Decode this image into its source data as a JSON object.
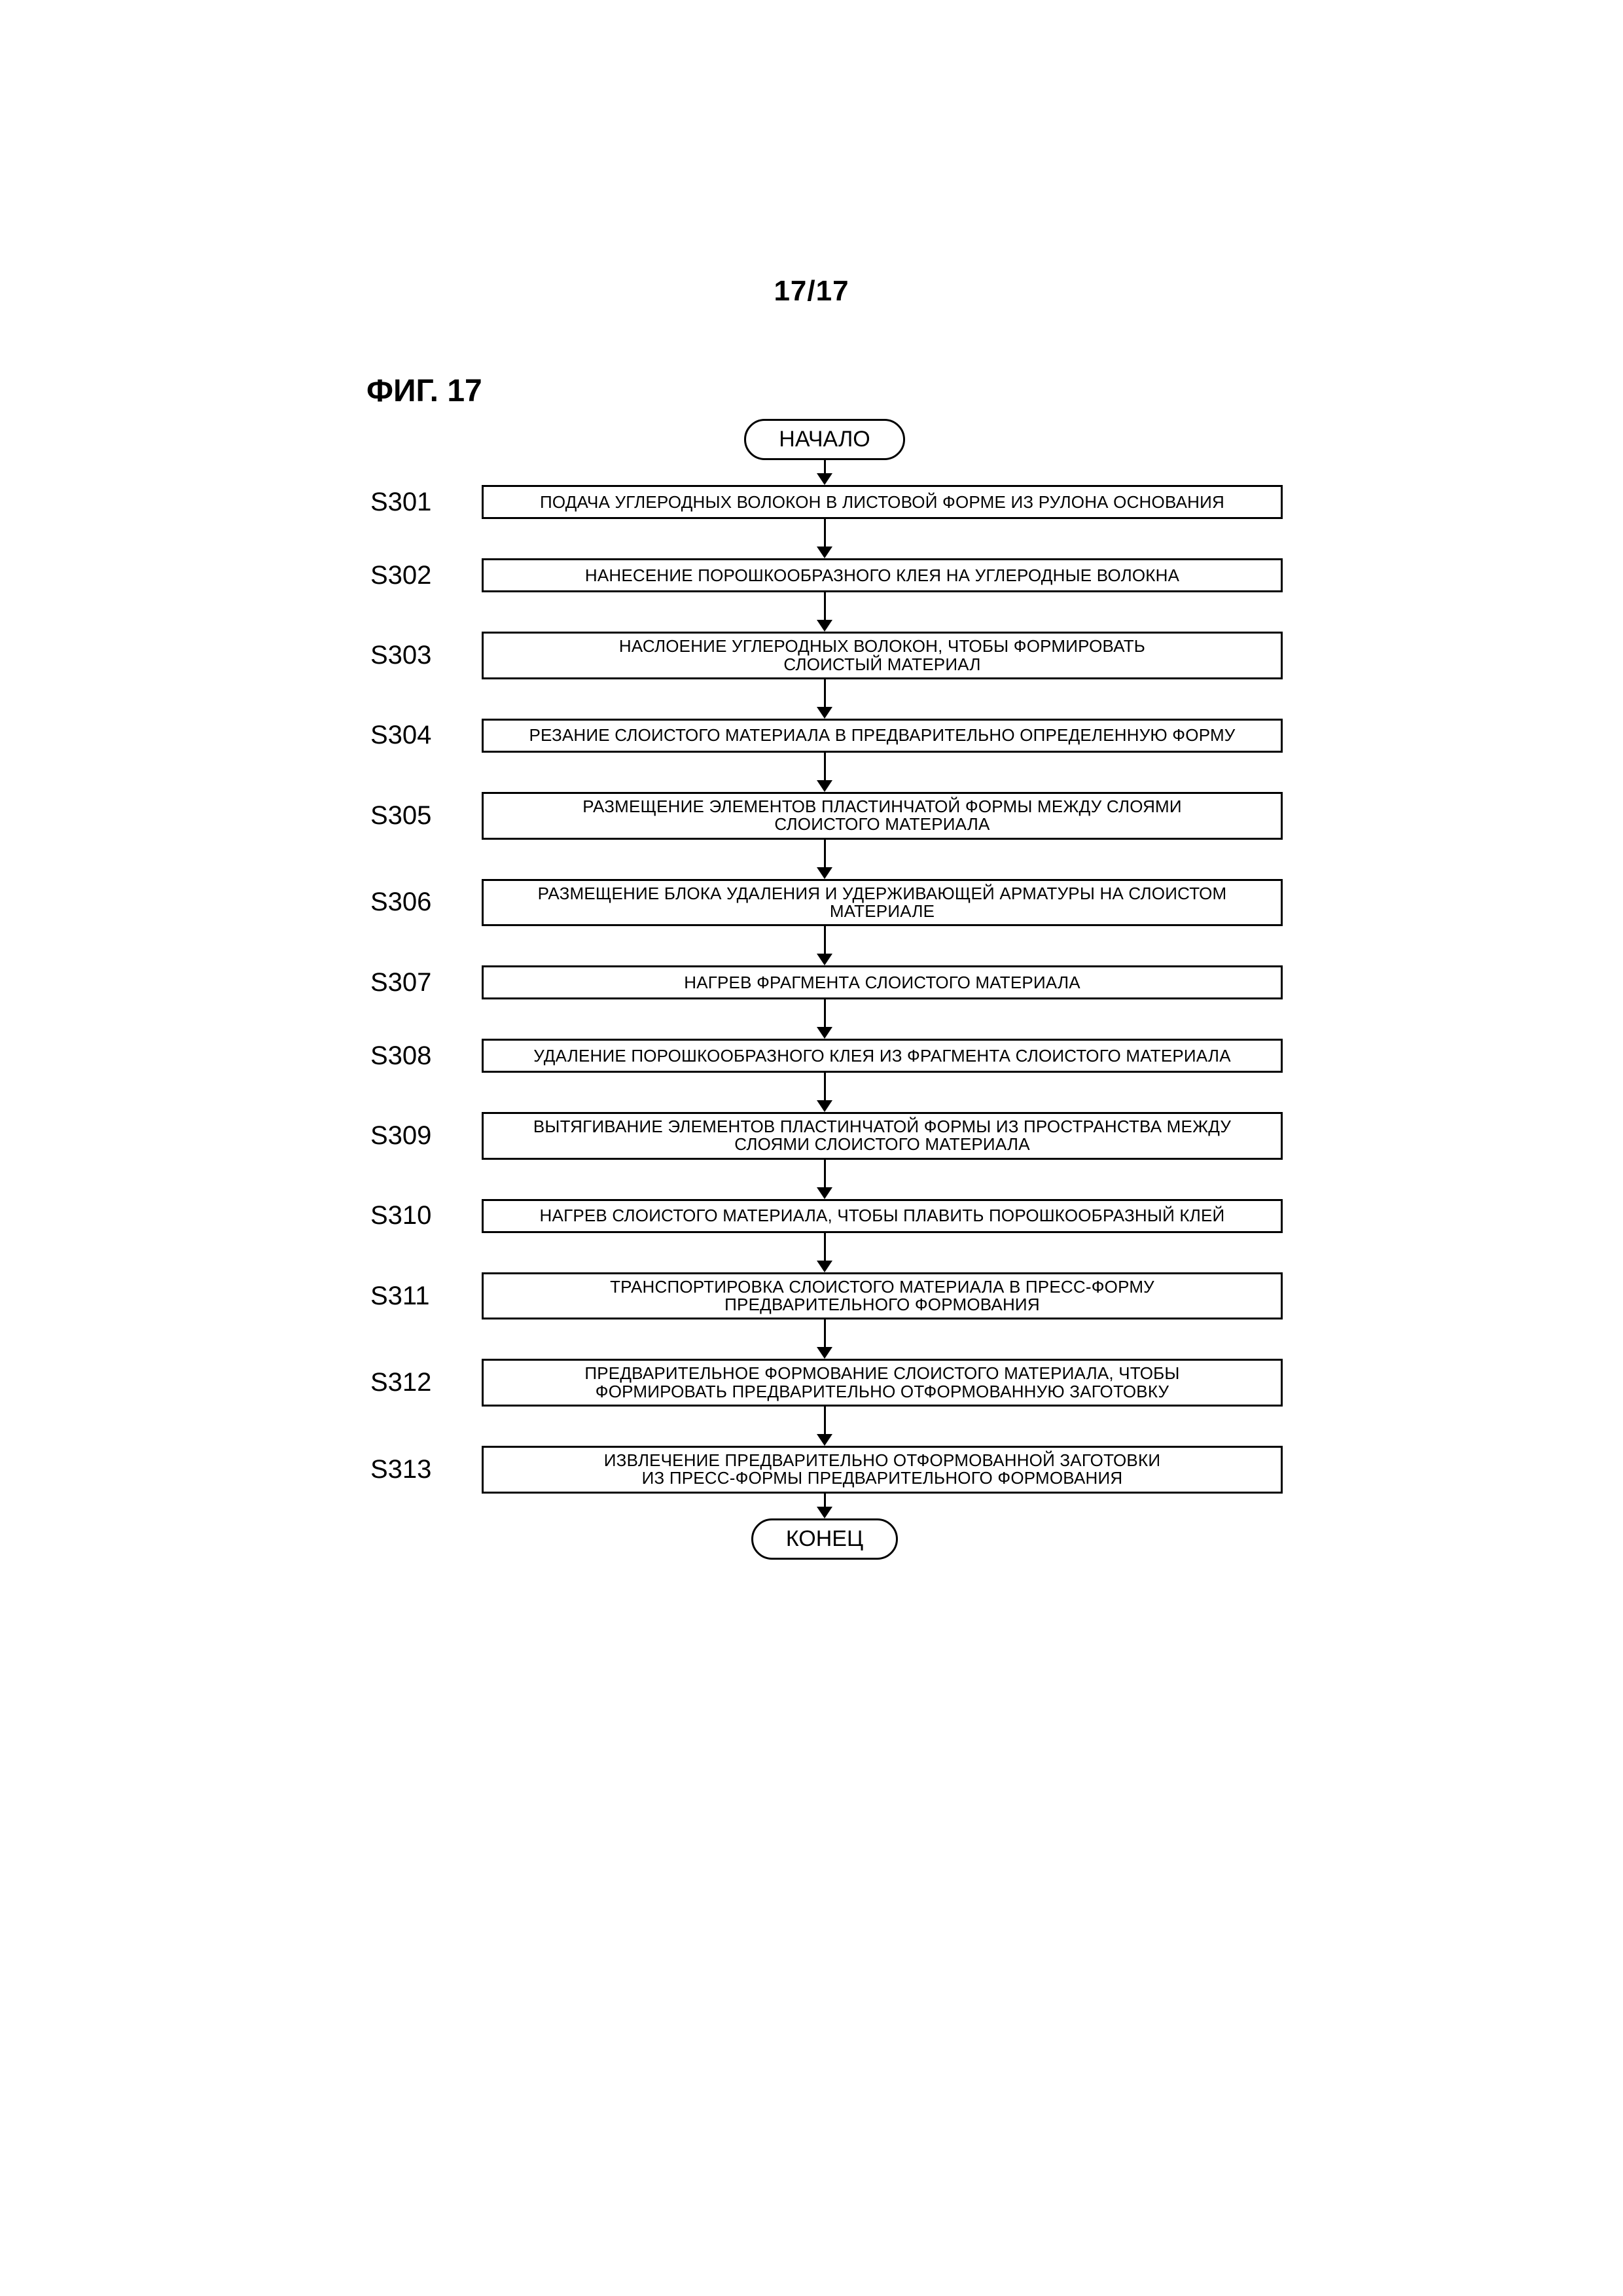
{
  "page_number": "17/17",
  "figure_caption": "ФИГ. 17",
  "flowchart": {
    "type": "flowchart",
    "start_label": "НАЧАЛО",
    "end_label": "КОНЕЦ",
    "box_border_color": "#000000",
    "box_border_width": 3,
    "background_color": "#ffffff",
    "label_fontsize": 40,
    "box_fontsize": 26,
    "terminator_fontsize": 34,
    "steps": [
      {
        "id": "S301",
        "text": "ПОДАЧА УГЛЕРОДНЫХ ВОЛОКОН В ЛИСТОВОЙ ФОРМЕ ИЗ РУЛОНА ОСНОВАНИЯ"
      },
      {
        "id": "S302",
        "text": "НАНЕСЕНИЕ ПОРОШКООБРАЗНОГО КЛЕЯ НА УГЛЕРОДНЫЕ ВОЛОКНА"
      },
      {
        "id": "S303",
        "text": "НАСЛОЕНИЕ УГЛЕРОДНЫХ ВОЛОКОН, ЧТОБЫ ФОРМИРОВАТЬ\nСЛОИСТЫЙ МАТЕРИАЛ"
      },
      {
        "id": "S304",
        "text": "РЕЗАНИЕ СЛОИСТОГО МАТЕРИАЛА В ПРЕДВАРИТЕЛЬНО ОПРЕДЕЛЕННУЮ ФОРМУ"
      },
      {
        "id": "S305",
        "text": "РАЗМЕЩЕНИЕ ЭЛЕМЕНТОВ ПЛАСТИНЧАТОЙ ФОРМЫ МЕЖДУ СЛОЯМИ\nСЛОИСТОГО МАТЕРИАЛА"
      },
      {
        "id": "S306",
        "text": "РАЗМЕЩЕНИЕ БЛОКА УДАЛЕНИЯ И УДЕРЖИВАЮЩЕЙ АРМАТУРЫ НА СЛОИСТОМ\nМАТЕРИАЛЕ"
      },
      {
        "id": "S307",
        "text": "НАГРЕВ ФРАГМЕНТА СЛОИСТОГО МАТЕРИАЛА"
      },
      {
        "id": "S308",
        "text": "УДАЛЕНИЕ ПОРОШКООБРАЗНОГО КЛЕЯ ИЗ ФРАГМЕНТА СЛОИСТОГО МАТЕРИАЛА"
      },
      {
        "id": "S309",
        "text": "ВЫТЯГИВАНИЕ ЭЛЕМЕНТОВ ПЛАСТИНЧАТОЙ ФОРМЫ ИЗ ПРОСТРАНСТВА МЕЖДУ\nСЛОЯМИ СЛОИСТОГО МАТЕРИАЛА"
      },
      {
        "id": "S310",
        "text": "НАГРЕВ СЛОИСТОГО МАТЕРИАЛА, ЧТОБЫ ПЛАВИТЬ ПОРОШКООБРАЗНЫЙ КЛЕЙ"
      },
      {
        "id": "S311",
        "text": "ТРАНСПОРТИРОВКА СЛОИСТОГО МАТЕРИАЛА В ПРЕСС-ФОРМУ\nПРЕДВАРИТЕЛЬНОГО ФОРМОВАНИЯ"
      },
      {
        "id": "S312",
        "text": "ПРЕДВАРИТЕЛЬНОЕ ФОРМОВАНИЕ СЛОИСТОГО МАТЕРИАЛА, ЧТОБЫ\nФОРМИРОВАТЬ ПРЕДВАРИТЕЛЬНО ОТФОРМОВАННУЮ ЗАГОТОВКУ"
      },
      {
        "id": "S313",
        "text": "ИЗВЛЕЧЕНИЕ ПРЕДВАРИТЕЛЬНО ОТФОРМОВАННОЙ ЗАГОТОВКИ\nИЗ ПРЕСС-ФОРМЫ ПРЕДВАРИТЕЛЬНОГО ФОРМОВАНИЯ"
      }
    ]
  }
}
